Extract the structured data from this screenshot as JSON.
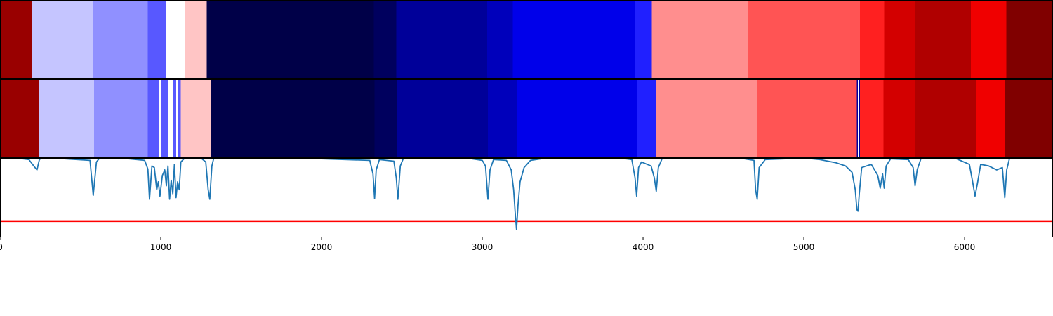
{
  "chart_data": {
    "type": "segmentation-comparison",
    "x_range": [
      0,
      6550
    ],
    "x_ticks": [
      0,
      1000,
      2000,
      3000,
      4000,
      5000,
      6000
    ],
    "x_tick_labels": [
      "0",
      "1000",
      "2000",
      "3000",
      "4000",
      "5000",
      "6000"
    ],
    "panels": [
      {
        "kind": "segment-strip",
        "segments": [
          {
            "start": 0,
            "end": 200,
            "color": "#990000"
          },
          {
            "start": 200,
            "end": 580,
            "color": "#c5c5ff"
          },
          {
            "start": 580,
            "end": 920,
            "color": "#9090ff"
          },
          {
            "start": 920,
            "end": 1030,
            "color": "#5858ff"
          },
          {
            "start": 1030,
            "end": 1150,
            "color": "#ffffff"
          },
          {
            "start": 1150,
            "end": 1285,
            "color": "#ffc5c5"
          },
          {
            "start": 1285,
            "end": 2325,
            "color": "#000048"
          },
          {
            "start": 2325,
            "end": 2465,
            "color": "#00005e"
          },
          {
            "start": 2465,
            "end": 3030,
            "color": "#000099"
          },
          {
            "start": 3030,
            "end": 3190,
            "color": "#0000bb"
          },
          {
            "start": 3190,
            "end": 3950,
            "color": "#0000ea"
          },
          {
            "start": 3950,
            "end": 4055,
            "color": "#2020ff"
          },
          {
            "start": 4055,
            "end": 4650,
            "color": "#ff8e8e"
          },
          {
            "start": 4650,
            "end": 5350,
            "color": "#ff5454"
          },
          {
            "start": 5350,
            "end": 5500,
            "color": "#ff2020"
          },
          {
            "start": 5500,
            "end": 5690,
            "color": "#d30000"
          },
          {
            "start": 5690,
            "end": 6040,
            "color": "#b00000"
          },
          {
            "start": 6040,
            "end": 6260,
            "color": "#f00000"
          },
          {
            "start": 6260,
            "end": 6550,
            "color": "#800000"
          }
        ]
      },
      {
        "kind": "segment-strip",
        "segments": [
          {
            "start": 0,
            "end": 240,
            "color": "#990000"
          },
          {
            "start": 240,
            "end": 585,
            "color": "#c5c5ff"
          },
          {
            "start": 585,
            "end": 920,
            "color": "#9090ff"
          },
          {
            "start": 920,
            "end": 990,
            "color": "#5858ff"
          },
          {
            "start": 990,
            "end": 1005,
            "color": "#ffffff"
          },
          {
            "start": 1005,
            "end": 1045,
            "color": "#5858ff"
          },
          {
            "start": 1045,
            "end": 1075,
            "color": "#ffffff"
          },
          {
            "start": 1075,
            "end": 1095,
            "color": "#5858ff"
          },
          {
            "start": 1095,
            "end": 1105,
            "color": "#ffffff"
          },
          {
            "start": 1105,
            "end": 1125,
            "color": "#5858ff"
          },
          {
            "start": 1125,
            "end": 1315,
            "color": "#ffc5c5"
          },
          {
            "start": 1315,
            "end": 2330,
            "color": "#000048"
          },
          {
            "start": 2330,
            "end": 2470,
            "color": "#00005e"
          },
          {
            "start": 2470,
            "end": 3035,
            "color": "#000099"
          },
          {
            "start": 3035,
            "end": 3215,
            "color": "#0000bb"
          },
          {
            "start": 3215,
            "end": 3960,
            "color": "#0000ea"
          },
          {
            "start": 3960,
            "end": 4080,
            "color": "#2020ff"
          },
          {
            "start": 4080,
            "end": 4710,
            "color": "#ff8e8e"
          },
          {
            "start": 4710,
            "end": 5330,
            "color": "#ff5454"
          },
          {
            "start": 5330,
            "end": 5337,
            "color": "#000099"
          },
          {
            "start": 5337,
            "end": 5343,
            "color": "#ffffff"
          },
          {
            "start": 5343,
            "end": 5350,
            "color": "#000099"
          },
          {
            "start": 5350,
            "end": 5495,
            "color": "#ff2020"
          },
          {
            "start": 5495,
            "end": 5690,
            "color": "#d30000"
          },
          {
            "start": 5690,
            "end": 6070,
            "color": "#b00000"
          },
          {
            "start": 6070,
            "end": 6250,
            "color": "#f00000"
          },
          {
            "start": 6250,
            "end": 6550,
            "color": "#800000"
          }
        ]
      },
      {
        "kind": "line",
        "line_color": "#1f77b4",
        "threshold": 0.2,
        "threshold_color": "#ff0000",
        "ylim": [
          0,
          1
        ],
        "baseline": 1.0,
        "points": [
          [
            0,
            1.0
          ],
          [
            100,
            1.0
          ],
          [
            180,
            0.98
          ],
          [
            210,
            0.9
          ],
          [
            230,
            0.85
          ],
          [
            245,
            0.98
          ],
          [
            260,
            1.0
          ],
          [
            400,
            0.99
          ],
          [
            560,
            0.97
          ],
          [
            580,
            0.53
          ],
          [
            600,
            0.95
          ],
          [
            620,
            1.0
          ],
          [
            800,
            0.99
          ],
          [
            900,
            0.97
          ],
          [
            920,
            0.86
          ],
          [
            930,
            0.48
          ],
          [
            945,
            0.9
          ],
          [
            960,
            0.88
          ],
          [
            975,
            0.6
          ],
          [
            985,
            0.7
          ],
          [
            995,
            0.52
          ],
          [
            1010,
            0.78
          ],
          [
            1025,
            0.85
          ],
          [
            1035,
            0.65
          ],
          [
            1045,
            0.9
          ],
          [
            1055,
            0.48
          ],
          [
            1065,
            0.72
          ],
          [
            1075,
            0.55
          ],
          [
            1085,
            0.92
          ],
          [
            1095,
            0.5
          ],
          [
            1105,
            0.7
          ],
          [
            1115,
            0.6
          ],
          [
            1125,
            0.95
          ],
          [
            1150,
            1.0
          ],
          [
            1250,
            1.0
          ],
          [
            1280,
            0.95
          ],
          [
            1295,
            0.6
          ],
          [
            1305,
            0.48
          ],
          [
            1318,
            0.9
          ],
          [
            1330,
            1.0
          ],
          [
            1800,
            1.0
          ],
          [
            2000,
            0.99
          ],
          [
            2300,
            0.97
          ],
          [
            2320,
            0.8
          ],
          [
            2330,
            0.49
          ],
          [
            2340,
            0.85
          ],
          [
            2360,
            0.98
          ],
          [
            2450,
            0.96
          ],
          [
            2465,
            0.75
          ],
          [
            2475,
            0.48
          ],
          [
            2490,
            0.9
          ],
          [
            2510,
            1.0
          ],
          [
            2900,
            1.0
          ],
          [
            3000,
            0.97
          ],
          [
            3020,
            0.9
          ],
          [
            3035,
            0.48
          ],
          [
            3048,
            0.85
          ],
          [
            3070,
            0.98
          ],
          [
            3150,
            0.97
          ],
          [
            3180,
            0.85
          ],
          [
            3195,
            0.6
          ],
          [
            3205,
            0.3
          ],
          [
            3213,
            0.1
          ],
          [
            3222,
            0.4
          ],
          [
            3235,
            0.7
          ],
          [
            3260,
            0.88
          ],
          [
            3300,
            0.97
          ],
          [
            3400,
            1.0
          ],
          [
            3850,
            1.0
          ],
          [
            3930,
            0.98
          ],
          [
            3950,
            0.75
          ],
          [
            3960,
            0.52
          ],
          [
            3972,
            0.88
          ],
          [
            3990,
            0.95
          ],
          [
            4050,
            0.9
          ],
          [
            4070,
            0.75
          ],
          [
            4082,
            0.58
          ],
          [
            4095,
            0.88
          ],
          [
            4120,
            1.0
          ],
          [
            4600,
            1.0
          ],
          [
            4690,
            0.97
          ],
          [
            4700,
            0.6
          ],
          [
            4710,
            0.48
          ],
          [
            4722,
            0.88
          ],
          [
            4760,
            0.98
          ],
          [
            5000,
            1.0
          ],
          [
            5100,
            0.98
          ],
          [
            5200,
            0.94
          ],
          [
            5260,
            0.9
          ],
          [
            5300,
            0.82
          ],
          [
            5320,
            0.6
          ],
          [
            5330,
            0.35
          ],
          [
            5337,
            0.33
          ],
          [
            5345,
            0.55
          ],
          [
            5360,
            0.88
          ],
          [
            5420,
            0.92
          ],
          [
            5460,
            0.78
          ],
          [
            5475,
            0.62
          ],
          [
            5490,
            0.8
          ],
          [
            5500,
            0.62
          ],
          [
            5512,
            0.9
          ],
          [
            5540,
            0.99
          ],
          [
            5650,
            0.98
          ],
          [
            5680,
            0.88
          ],
          [
            5692,
            0.65
          ],
          [
            5705,
            0.85
          ],
          [
            5730,
            1.0
          ],
          [
            5950,
            0.99
          ],
          [
            6030,
            0.92
          ],
          [
            6050,
            0.7
          ],
          [
            6065,
            0.52
          ],
          [
            6080,
            0.68
          ],
          [
            6100,
            0.92
          ],
          [
            6150,
            0.9
          ],
          [
            6200,
            0.85
          ],
          [
            6235,
            0.88
          ],
          [
            6250,
            0.5
          ],
          [
            6262,
            0.85
          ],
          [
            6280,
            1.0
          ],
          [
            6550,
            1.0
          ]
        ]
      }
    ]
  }
}
